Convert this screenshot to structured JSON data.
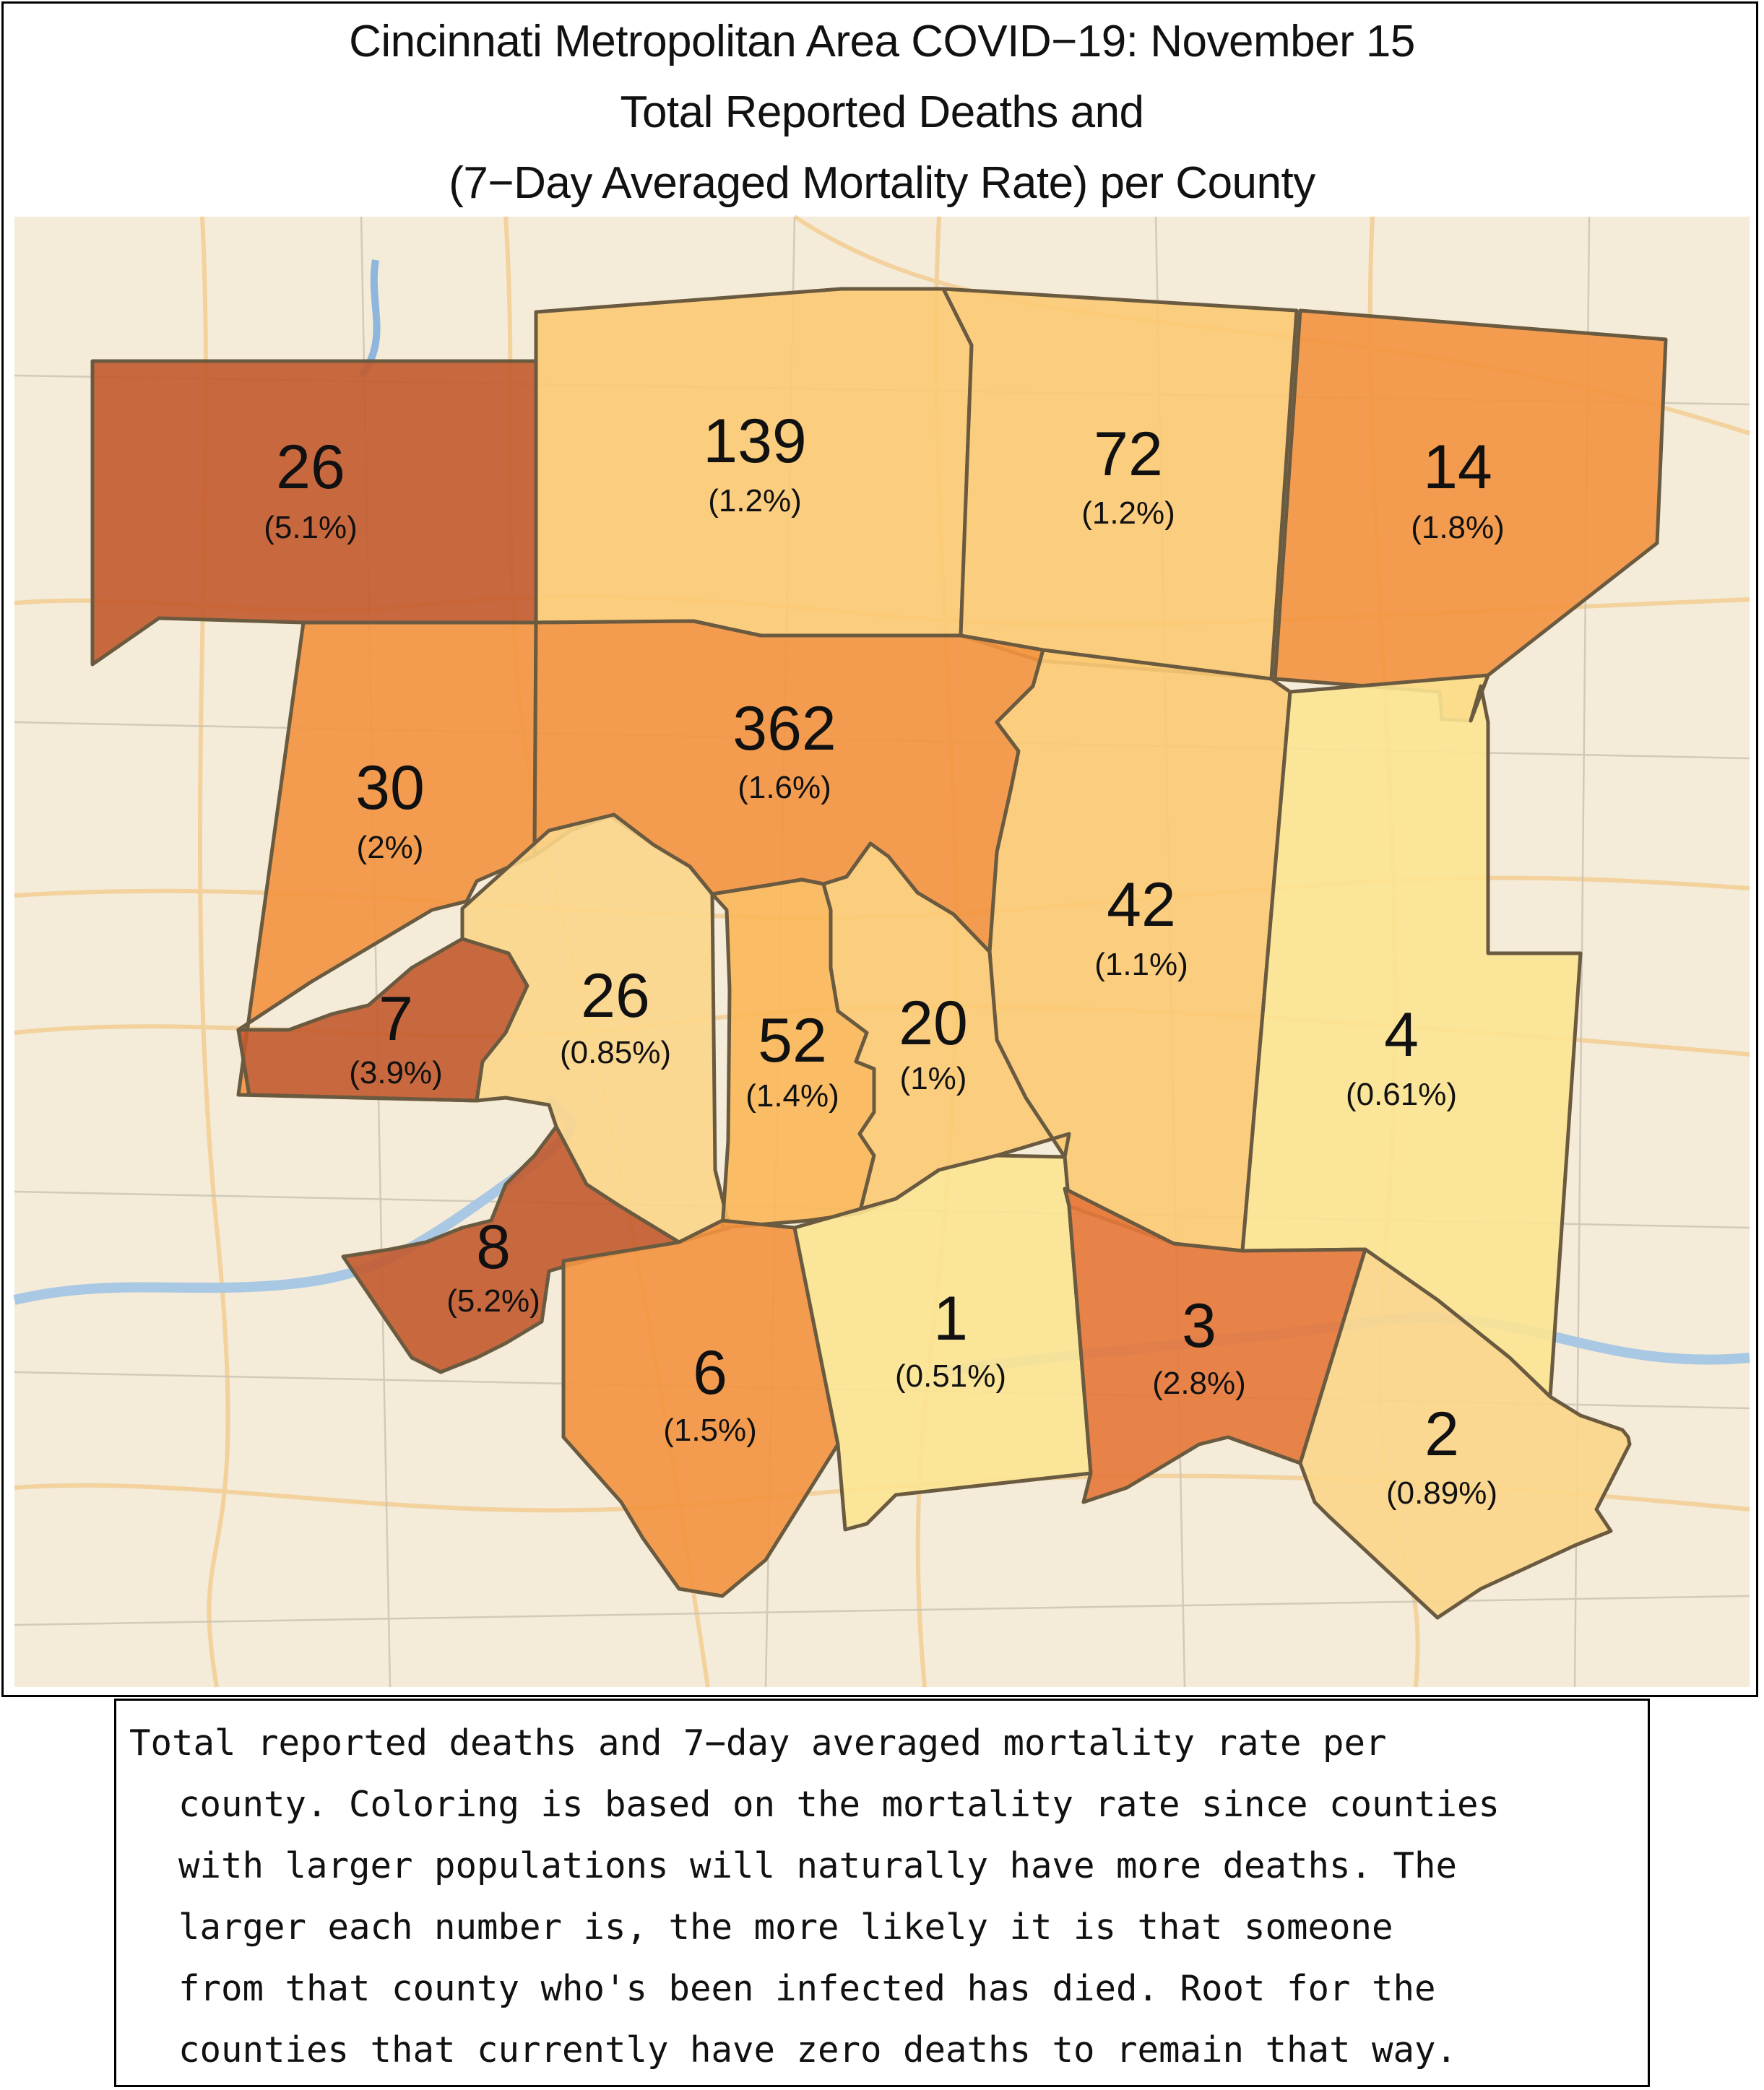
{
  "title": {
    "line1": "Cincinnati Metropolitan Area COVID−19: November 15",
    "line2": "Total Reported Deaths and",
    "line3": "(7−Day Averaged Mortality Rate) per County"
  },
  "colors": {
    "very_low": "#fce492",
    "low": "#fcca74",
    "medium_low": "#fbb758",
    "medium": "#f39440",
    "high": "#e5773a",
    "very_high": "#c35a2d",
    "map_background": "#f4ebd8",
    "border": "#6a5a40"
  },
  "counties": [
    {
      "deaths": "26",
      "rate": "(5.1%)"
    },
    {
      "deaths": "139",
      "rate": "(1.2%)"
    },
    {
      "deaths": "72",
      "rate": "(1.2%)"
    },
    {
      "deaths": "14",
      "rate": "(1.8%)"
    },
    {
      "deaths": "30",
      "rate": "(2%)"
    },
    {
      "deaths": "362",
      "rate": "(1.6%)"
    },
    {
      "deaths": "42",
      "rate": "(1.1%)"
    },
    {
      "deaths": "7",
      "rate": "(3.9%)"
    },
    {
      "deaths": "26",
      "rate": "(0.85%)"
    },
    {
      "deaths": "52",
      "rate": "(1.4%)"
    },
    {
      "deaths": "20",
      "rate": "(1%)"
    },
    {
      "deaths": "4",
      "rate": "(0.61%)"
    },
    {
      "deaths": "8",
      "rate": "(5.2%)"
    },
    {
      "deaths": "6",
      "rate": "(1.5%)"
    },
    {
      "deaths": "1",
      "rate": "(0.51%)"
    },
    {
      "deaths": "3",
      "rate": "(2.8%)"
    },
    {
      "deaths": "2",
      "rate": "(0.89%)"
    }
  ],
  "caption": {
    "lines": [
      "Total reported deaths and 7−day averaged mortality rate per",
      "county. Coloring is based on the mortality rate since counties",
      "with larger populations will naturally have more deaths. The",
      "larger each number is, the more likely it is that someone",
      "from that county who's been infected has died. Root for the",
      "counties that currently have zero deaths to remain that way."
    ]
  }
}
